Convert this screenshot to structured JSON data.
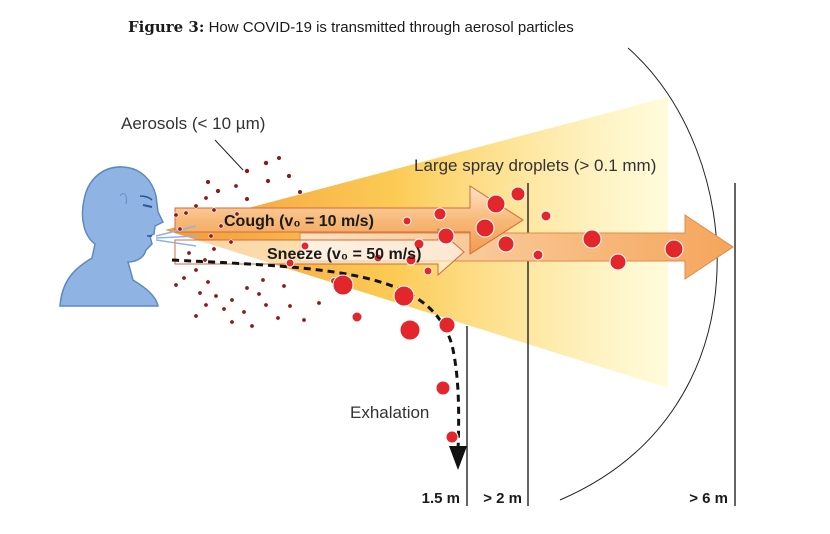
{
  "figure": {
    "number": "Figure 3:",
    "caption": "How COVID-19 is transmitted through aerosol particles"
  },
  "labels": {
    "aerosols": "Aerosols (< 10 µm)",
    "spray": "Large spray droplets (> 0.1 mm)",
    "cough": "Cough (v₀ = 10 m/s)",
    "sneeze": "Sneeze (v₀ = 50 m/s)",
    "exhalation": "Exhalation"
  },
  "distances": {
    "d1": "1.5 m",
    "d2": "> 2 m",
    "d3": "> 6 m"
  },
  "colors": {
    "head": "#8fb4e3",
    "head_outline": "#5e88c2",
    "droplet": "#e3262b",
    "aerosol_dot": "#8b1a1a",
    "cone_orange": "#f6a94a",
    "cone_yellow": "#fff6a6",
    "arrow_fill": "#f5b26b",
    "arrow_edge": "#d9542b"
  }
}
